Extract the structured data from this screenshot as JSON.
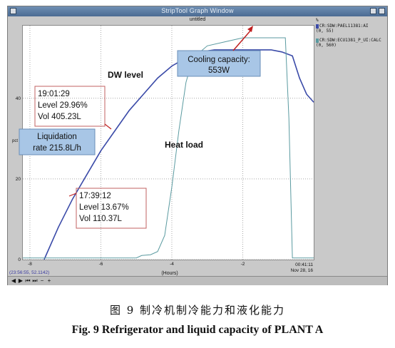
{
  "window": {
    "title": "StripTool Graph Window",
    "subtitle": "untitled"
  },
  "legend": {
    "items": [
      {
        "label": "CR:SDW:PAEL11381:AI",
        "range": "(0, 55)",
        "color": "#3040a0"
      },
      {
        "label": "CR:SDW:ECU1381_P_UI:CALC",
        "range": "(0, 560)",
        "color": "#5a9aa0"
      }
    ],
    "axis_unit": "%"
  },
  "status": {
    "cursor_readout": "(23:56:55, 52.1142)",
    "time_left": "00:41:11",
    "date": "Nov 28, 16"
  },
  "toolbar": {
    "buttons": [
      {
        "icon": "left-arrow-icon",
        "glyph": "◀"
      },
      {
        "icon": "right-arrow-icon",
        "glyph": "▶"
      },
      {
        "icon": "skip-start-icon",
        "glyph": "⏮"
      },
      {
        "icon": "skip-end-icon",
        "glyph": "⏭"
      },
      {
        "icon": "zoom-out-icon",
        "glyph": "−"
      },
      {
        "icon": "zoom-in-icon",
        "glyph": "+"
      }
    ]
  },
  "annotations": {
    "dw_level": "DW level",
    "heat_load": "Heat load",
    "cooling": [
      "Cooling capacity:",
      "553W"
    ],
    "liquidation": [
      "Liquidation",
      "rate 215.8L/h"
    ],
    "box1": [
      "19:01:29",
      "Level  29.96%",
      "Vol   405.23L"
    ],
    "box2": [
      "17:39:12",
      "Level  13.67%",
      "Vol  110.37L"
    ]
  },
  "chart_data": {
    "type": "line",
    "xlabel": "(Hours)",
    "ylabel": "pct",
    "xlim": [
      -8.2,
      0
    ],
    "ylim": [
      0,
      58
    ],
    "x_ticks": [
      -8,
      -6,
      -4,
      -2
    ],
    "x_tick_labels": [
      "-8",
      "-6",
      "-4",
      "-2"
    ],
    "y_ticks": [
      0,
      20,
      40
    ],
    "y_tick_labels": [
      "0",
      "20",
      "40"
    ],
    "series": [
      {
        "name": "CR:SDW:PAEL11381:AI",
        "color": "#3a4aa8",
        "x": [
          -7.6,
          -7.2,
          -6.8,
          -6.4,
          -6.0,
          -5.6,
          -5.2,
          -4.8,
          -4.4,
          -4.0,
          -3.6,
          -3.2,
          -2.8,
          -2.4,
          -2.0,
          -1.6,
          -1.2,
          -0.9,
          -0.6,
          -0.4,
          -0.2,
          0.0
        ],
        "y": [
          0,
          8,
          15,
          21,
          27,
          32,
          37,
          41,
          45,
          48,
          50,
          51.5,
          52,
          52,
          52,
          52,
          52,
          51.5,
          50.5,
          45,
          41,
          39
        ]
      },
      {
        "name": "CR:SDW:ECU1381_P_UI:CALC",
        "color": "#5a9aa0",
        "x": [
          -8.2,
          -5.0,
          -4.85,
          -4.6,
          -4.4,
          -4.2,
          -4.0,
          -3.8,
          -3.6,
          -3.4,
          -3.0,
          -2.5,
          -2.0,
          -1.5,
          -1.0,
          -0.8,
          -0.7,
          -0.6,
          -0.3,
          0.0
        ],
        "y": [
          0.4,
          0.4,
          1.0,
          1.2,
          2,
          6,
          18,
          32,
          44,
          50,
          53,
          54,
          55,
          55,
          55,
          55,
          35,
          0.4,
          0.4,
          0.4
        ]
      }
    ]
  },
  "captions": {
    "cn": "图 9   制冷机制冷能力和液化能力",
    "en": "Fig. 9    Refrigerator and liquid capacity of PLANT A"
  }
}
